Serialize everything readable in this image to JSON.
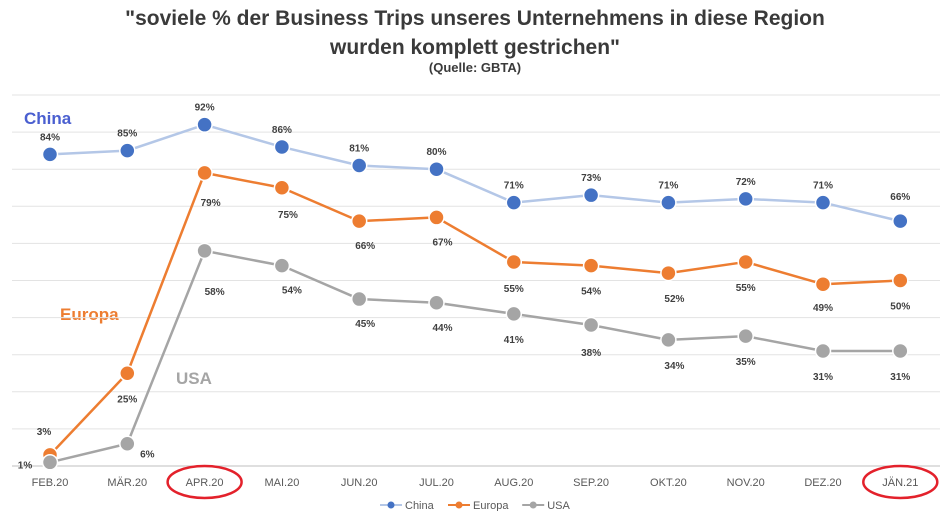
{
  "header": {
    "title_line1": "\"soviele % der Business Trips unseres Unternehmens in diese Region",
    "title_line2": "wurden komplett gestrichen\"",
    "source": "(Quelle: GBTA)"
  },
  "series_tags": {
    "china": "China",
    "europa": "Europa",
    "usa": "USA"
  },
  "chart_data": {
    "type": "line",
    "categories": [
      "FEB.20",
      "MÄR.20",
      "APR.20",
      "MAI.20",
      "JUN.20",
      "JUL.20",
      "AUG.20",
      "SEP.20",
      "OKT.20",
      "NOV.20",
      "DEZ.20",
      "JÄN.21"
    ],
    "series": [
      {
        "name": "China",
        "color": "#4472c4",
        "line_color": "#b4c7e7",
        "values": [
          84,
          85,
          92,
          86,
          81,
          80,
          71,
          73,
          71,
          72,
          71,
          66
        ]
      },
      {
        "name": "Europa",
        "color": "#ed7d31",
        "line_color": "#ed7d31",
        "values": [
          3,
          25,
          79,
          75,
          66,
          67,
          55,
          54,
          52,
          55,
          49,
          50
        ]
      },
      {
        "name": "USA",
        "color": "#a5a5a5",
        "line_color": "#a5a5a5",
        "values": [
          1,
          6,
          58,
          54,
          45,
          44,
          41,
          38,
          34,
          35,
          31,
          31
        ]
      }
    ],
    "value_suffix": "%",
    "ylim": [
      0,
      100
    ],
    "grid": true,
    "legend": "bottom-center",
    "highlighted_categories": [
      "APR.20",
      "JÄN.21"
    ],
    "highlight_color": "#e3212b"
  }
}
